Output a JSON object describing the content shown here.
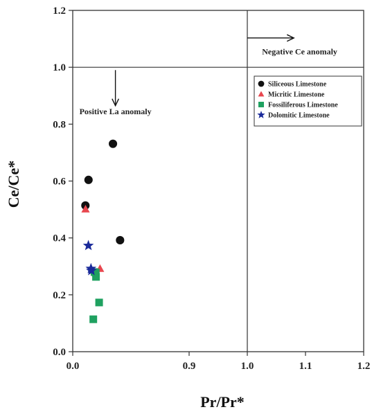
{
  "chart_data": {
    "type": "scatter",
    "xlabel": "Pr/Pr*",
    "ylabel": "Ce/Ce*",
    "x_ticks": [
      "0.0",
      "0.9",
      "1.0",
      "1.1",
      "1.2"
    ],
    "x_tick_values": [
      0.0,
      0.9,
      1.0,
      1.1,
      1.2
    ],
    "xlim": [
      0.0,
      1.2
    ],
    "y_ticks": [
      "0.0",
      "0.2",
      "0.4",
      "0.6",
      "0.8",
      "1.0",
      "1.2"
    ],
    "y_tick_values": [
      0.0,
      0.2,
      0.4,
      0.6,
      0.8,
      1.0,
      1.2
    ],
    "ylim": [
      0.0,
      1.2
    ],
    "reference_lines": {
      "y": 1.0,
      "x": 1.0
    },
    "annotations": [
      {
        "text": "Negative Ce anomaly",
        "x": 1.09,
        "y": 1.045
      },
      {
        "text": "Positive La anomaly",
        "x": 0.33,
        "y": 0.835
      }
    ],
    "arrows": [
      {
        "from": [
          1.0,
          1.103
        ],
        "to": [
          1.08,
          1.103
        ]
      },
      {
        "from": [
          0.33,
          0.99
        ],
        "to": [
          0.33,
          0.865
        ]
      }
    ],
    "legend_position": "right-middle",
    "series": [
      {
        "name": "Siliceous Limestone",
        "marker": "circle",
        "color": "#111111",
        "points": [
          {
            "x": 0.098,
            "y": 0.514
          },
          {
            "x": 0.122,
            "y": 0.604
          },
          {
            "x": 0.311,
            "y": 0.731
          },
          {
            "x": 0.366,
            "y": 0.392
          }
        ]
      },
      {
        "name": "Micritic Limestone",
        "marker": "triangle",
        "color": "#e8474f",
        "points": [
          {
            "x": 0.099,
            "y": 0.501
          },
          {
            "x": 0.211,
            "y": 0.292
          }
        ]
      },
      {
        "name": "Fossiliferous Limestone",
        "marker": "square",
        "color": "#1fa160",
        "points": [
          {
            "x": 0.168,
            "y": 0.28
          },
          {
            "x": 0.178,
            "y": 0.278
          },
          {
            "x": 0.18,
            "y": 0.263
          },
          {
            "x": 0.204,
            "y": 0.173
          },
          {
            "x": 0.159,
            "y": 0.114
          }
        ]
      },
      {
        "name": "Dolomitic Limestone",
        "marker": "star",
        "color": "#1a2a9a",
        "points": [
          {
            "x": 0.121,
            "y": 0.373
          },
          {
            "x": 0.141,
            "y": 0.292
          },
          {
            "x": 0.144,
            "y": 0.285
          }
        ]
      }
    ]
  },
  "colors": {
    "axis": "#333333",
    "background": "#ffffff"
  }
}
